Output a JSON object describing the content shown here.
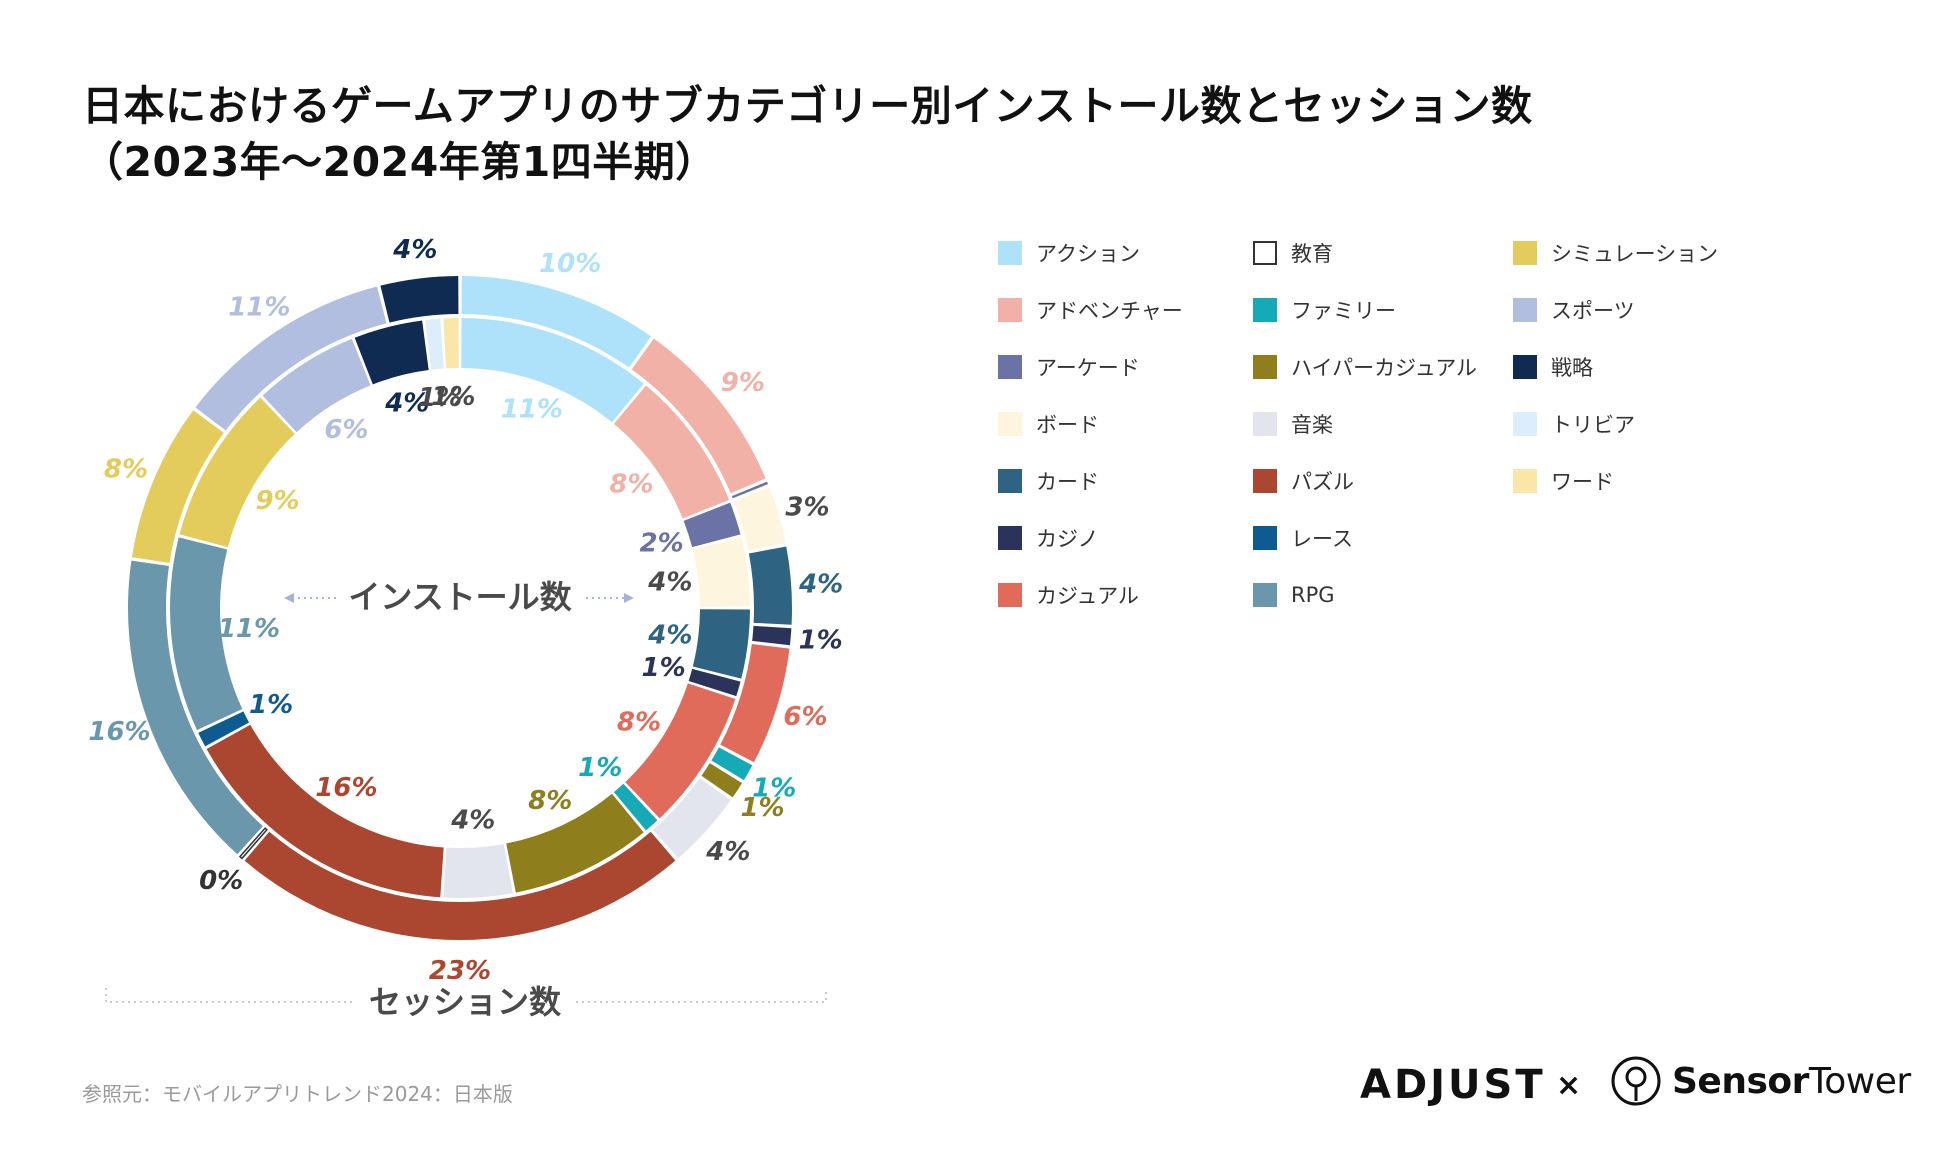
{
  "title": {
    "line1": "日本におけるゲームアプリのサブカテゴリー別インストール数とセッション数",
    "line2": "（2023年〜2024年第1四半期）"
  },
  "center_label": "インストール数",
  "bottom_label": "セッション数",
  "source": "参照元：モバイルアプリトレンド2024：日本版",
  "logos": {
    "adjust": "ADJUST",
    "times": "×",
    "sensortower_bold": "Sensor",
    "sensortower_rest": "Tower"
  },
  "colors": {
    "action": "#aee1fa",
    "education": "#ffffff",
    "simulation": "#e4cc5c",
    "adventure": "#f1b1a6",
    "family": "#16a9b7",
    "sports": "#b1bedf",
    "arcade": "#6a72a6",
    "hypercasual": "#8f7e1c",
    "strategy": "#0f2b52",
    "board": "#fdf5dd",
    "music": "#e3e5ee",
    "trivia": "#dcedfb",
    "card": "#2e6482",
    "puzzle": "#ab4630",
    "word": "#f9e6a8",
    "casino": "#2c335a",
    "casual": "#e06b5a",
    "racing": "#0e5b91",
    "rpg": "#6a97ab"
  },
  "chart_data": {
    "type": "donut",
    "title": "日本におけるゲームアプリのサブカテゴリー別インストール数とセッション数（2023年〜2024年第1四半期）",
    "unit": "%",
    "rings": [
      {
        "name": "インストール数",
        "position": "inner",
        "slices": [
          {
            "key": "action",
            "value": 11,
            "label": "11%"
          },
          {
            "key": "adventure",
            "value": 8,
            "label": "8%"
          },
          {
            "key": "arcade",
            "value": 2,
            "label": "2%"
          },
          {
            "key": "board",
            "value": 4,
            "label": "4%"
          },
          {
            "key": "card",
            "value": 4,
            "label": "4%"
          },
          {
            "key": "casino",
            "value": 1,
            "label": "1%"
          },
          {
            "key": "casual",
            "value": 8,
            "label": "8%"
          },
          {
            "key": "family",
            "value": 1,
            "label": "1%"
          },
          {
            "key": "hypercasual",
            "value": 8,
            "label": "8%"
          },
          {
            "key": "music",
            "value": 4,
            "label": "4%"
          },
          {
            "key": "puzzle",
            "value": 16,
            "label": "16%"
          },
          {
            "key": "racing",
            "value": 1,
            "label": "1%"
          },
          {
            "key": "rpg",
            "value": 11,
            "label": "11%"
          },
          {
            "key": "simulation",
            "value": 9,
            "label": "9%"
          },
          {
            "key": "sports",
            "value": 6,
            "label": "6%"
          },
          {
            "key": "strategy",
            "value": 4,
            "label": "4%"
          },
          {
            "key": "trivia",
            "value": 1,
            "label": "1%"
          },
          {
            "key": "word",
            "value": 1,
            "label": "1%"
          }
        ]
      },
      {
        "name": "セッション数",
        "position": "outer",
        "slices": [
          {
            "key": "action",
            "value": 10,
            "label": "10%"
          },
          {
            "key": "adventure",
            "value": 9,
            "label": "9%"
          },
          {
            "key": "arcade",
            "value": 0.3,
            "label": ""
          },
          {
            "key": "board",
            "value": 3,
            "label": "3%"
          },
          {
            "key": "card",
            "value": 4,
            "label": "4%"
          },
          {
            "key": "casino",
            "value": 1,
            "label": "1%"
          },
          {
            "key": "casual",
            "value": 6,
            "label": "6%"
          },
          {
            "key": "family",
            "value": 1,
            "label": "1%"
          },
          {
            "key": "hypercasual",
            "value": 1,
            "label": "1%"
          },
          {
            "key": "music",
            "value": 4,
            "label": "4%"
          },
          {
            "key": "puzzle",
            "value": 23,
            "label": "23%"
          },
          {
            "key": "education",
            "value": 0.3,
            "label": "0%"
          },
          {
            "key": "rpg",
            "value": 16,
            "label": "16%"
          },
          {
            "key": "simulation",
            "value": 8,
            "label": "8%"
          },
          {
            "key": "sports",
            "value": 11,
            "label": "11%"
          },
          {
            "key": "strategy",
            "value": 4,
            "label": "4%"
          }
        ]
      }
    ],
    "legend": {
      "placement": "right",
      "columns": [
        [
          {
            "key": "action",
            "label": "アクション"
          },
          {
            "key": "adventure",
            "label": "アドベンチャー"
          },
          {
            "key": "arcade",
            "label": "アーケード"
          },
          {
            "key": "board",
            "label": "ボード"
          },
          {
            "key": "card",
            "label": "カード"
          },
          {
            "key": "casino",
            "label": "カジノ"
          },
          {
            "key": "casual",
            "label": "カジュアル"
          }
        ],
        [
          {
            "key": "education",
            "label": "教育"
          },
          {
            "key": "family",
            "label": "ファミリー"
          },
          {
            "key": "hypercasual",
            "label": "ハイパーカジュアル"
          },
          {
            "key": "music",
            "label": "音楽"
          },
          {
            "key": "puzzle",
            "label": "パズル"
          },
          {
            "key": "racing",
            "label": "レース"
          },
          {
            "key": "rpg",
            "label": "RPG"
          }
        ],
        [
          {
            "key": "simulation",
            "label": "シミュレーション"
          },
          {
            "key": "sports",
            "label": "スポーツ"
          },
          {
            "key": "strategy",
            "label": "戦略"
          },
          {
            "key": "trivia",
            "label": "トリビア"
          },
          {
            "key": "word",
            "label": "ワード"
          }
        ]
      ]
    }
  }
}
